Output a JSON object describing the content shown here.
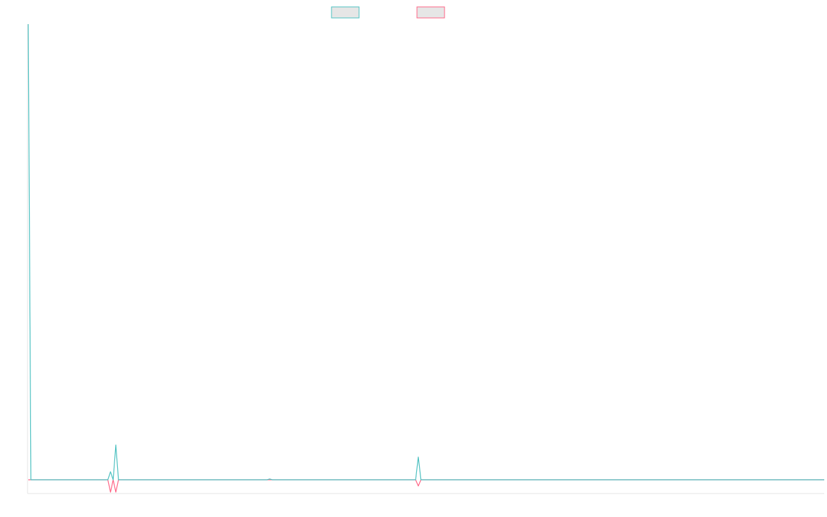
{
  "colors": {
    "series_a": "#4bc0c0",
    "series_b": "#ff6384",
    "legend_fill": "#e6e6e6",
    "axis": "#e5e5e5"
  },
  "chart_data": {
    "type": "line",
    "title": "",
    "xlabel": "",
    "ylabel": "",
    "grid": false,
    "legend": "top-center",
    "x_range": [
      0,
      300
    ],
    "ylim": [
      -5,
      170
    ],
    "series": [
      {
        "values": [
          [
            0,
            170
          ],
          [
            1,
            0
          ],
          [
            30,
            0
          ],
          [
            31,
            3
          ],
          [
            32,
            0
          ],
          [
            33,
            13
          ],
          [
            34,
            0
          ],
          [
            90,
            0
          ],
          [
            91,
            0.3
          ],
          [
            92,
            0
          ],
          [
            146,
            0
          ],
          [
            147,
            8.5
          ],
          [
            148,
            0
          ],
          [
            300,
            0
          ]
        ]
      },
      {
        "values": [
          [
            0,
            0
          ],
          [
            30,
            0
          ],
          [
            31,
            -5
          ],
          [
            32,
            0
          ],
          [
            33,
            -5
          ],
          [
            34,
            0
          ],
          [
            146,
            0
          ],
          [
            147,
            -2.5
          ],
          [
            148,
            0
          ],
          [
            300,
            0
          ]
        ]
      }
    ]
  }
}
